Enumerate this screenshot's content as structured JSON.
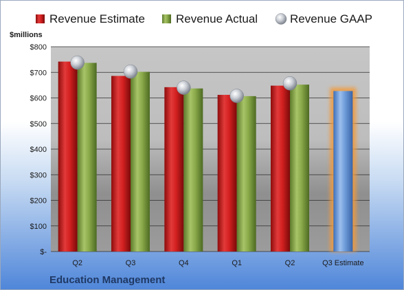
{
  "chart_data": {
    "type": "bar",
    "footer": "Education Management",
    "y_unit_label": "$millions",
    "categories": [
      "Q2",
      "Q3",
      "Q4",
      "Q1",
      "Q2",
      "Q3 Estimate"
    ],
    "series": [
      {
        "name": "Revenue Estimate",
        "color": "#d42020",
        "values": [
          742,
          686,
          642,
          612,
          648,
          null
        ]
      },
      {
        "name": "Revenue Actual",
        "color": "#8aaa4a",
        "values": [
          737,
          702,
          637,
          607,
          652,
          null
        ]
      },
      {
        "name": "Revenue GAAP",
        "type": "scatter",
        "color": "#b8bcc4",
        "values": [
          738,
          703,
          640,
          608,
          657,
          null
        ]
      },
      {
        "name": "",
        "color": "#6e9bd8",
        "values": [
          null,
          null,
          null,
          null,
          null,
          627
        ]
      }
    ],
    "ylim": [
      0,
      800
    ],
    "yticks": [
      {
        "value": 0,
        "label": "$-"
      },
      {
        "value": 100,
        "label": "$100"
      },
      {
        "value": 200,
        "label": "$200"
      },
      {
        "value": 300,
        "label": "$300"
      },
      {
        "value": 400,
        "label": "$400"
      },
      {
        "value": 500,
        "label": "$500"
      },
      {
        "value": 600,
        "label": "$600"
      },
      {
        "value": 700,
        "label": "$700"
      },
      {
        "value": 800,
        "label": "$800"
      }
    ],
    "grid": true,
    "legend_position": "top"
  }
}
